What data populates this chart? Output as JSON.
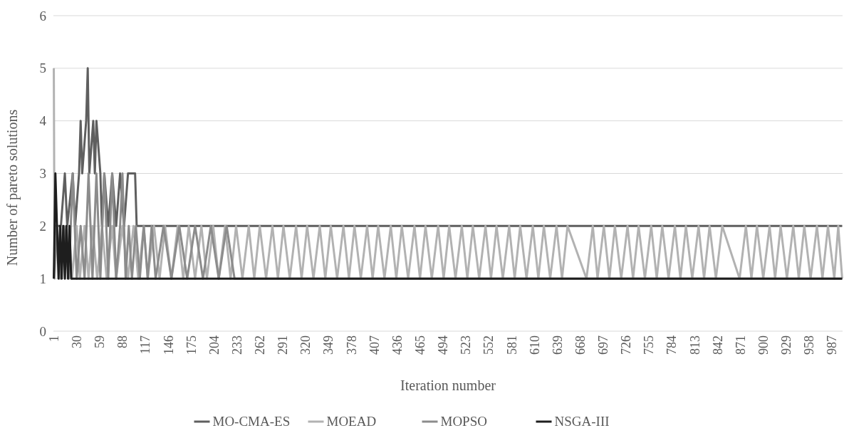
{
  "chart_data": {
    "type": "line",
    "xlabel": "Iteration number",
    "ylabel": "Number of pareto solutions",
    "xlim": [
      0.5,
      1000.5
    ],
    "xticks": [
      1,
      30,
      59,
      88,
      117,
      146,
      175,
      204,
      233,
      262,
      291,
      320,
      349,
      378,
      407,
      436,
      465,
      494,
      523,
      552,
      581,
      610,
      639,
      668,
      697,
      726,
      755,
      784,
      813,
      842,
      871,
      900,
      929,
      958,
      987
    ],
    "ylim": [
      0,
      6
    ],
    "yticks": [
      0,
      1,
      2,
      3,
      4,
      5,
      6
    ],
    "grid": "y",
    "legend": "bottom",
    "line_style": "solid",
    "series": [
      {
        "name": "MO-CMA-ES",
        "color": "#5f5f5f",
        "x": [
          1,
          10,
          15,
          18,
          25,
          28,
          33,
          35,
          37,
          42,
          44,
          46,
          51,
          53,
          55,
          60,
          62,
          65,
          70,
          75,
          80,
          85,
          90,
          95,
          104,
          106,
          1000
        ],
        "values": [
          2,
          2,
          3,
          2,
          3,
          2,
          3,
          4,
          3,
          4,
          5,
          3,
          4,
          3,
          4,
          3,
          2,
          3,
          2,
          3,
          2,
          3,
          2,
          3,
          3,
          2,
          2
        ]
      },
      {
        "name": "MOEAD",
        "color": "#b2b2b2",
        "x": [
          1,
          2,
          5,
          8,
          12,
          15,
          20,
          24,
          30,
          34,
          40,
          45,
          50,
          56,
          62,
          68,
          75,
          80,
          88,
          95,
          102,
          108,
          115,
          120,
          128,
          135,
          142,
          150,
          158,
          165,
          172,
          180,
          188,
          195,
          203,
          210,
          218,
          225,
          232,
          240,
          248,
          255,
          262,
          270,
          278,
          285,
          292,
          300,
          308,
          315,
          322,
          330,
          338,
          345,
          352,
          360,
          368,
          375,
          382,
          390,
          398,
          405,
          412,
          420,
          428,
          435,
          442,
          450,
          458,
          465,
          472,
          480,
          488,
          495,
          502,
          510,
          518,
          525,
          532,
          540,
          548,
          555,
          562,
          570,
          578,
          585,
          592,
          600,
          608,
          615,
          622,
          630,
          638,
          645,
          652,
          676,
          684,
          690,
          698,
          705,
          712,
          720,
          728,
          735,
          742,
          750,
          758,
          765,
          772,
          780,
          788,
          795,
          802,
          810,
          818,
          825,
          832,
          840,
          848,
          870,
          878,
          885,
          892,
          900,
          908,
          915,
          922,
          930,
          938,
          945,
          952,
          960,
          968,
          975,
          982,
          990,
          995,
          1000
        ],
        "values": [
          5,
          1,
          2,
          1,
          2,
          1,
          2,
          1,
          2,
          1,
          2,
          1,
          2,
          1,
          2,
          1,
          2,
          1,
          2,
          1,
          2,
          1,
          2,
          1,
          2,
          1,
          2,
          1,
          2,
          1,
          2,
          1,
          2,
          1,
          2,
          1,
          2,
          1,
          2,
          1,
          2,
          1,
          2,
          1,
          2,
          1,
          2,
          1,
          2,
          1,
          2,
          1,
          2,
          1,
          2,
          1,
          2,
          1,
          2,
          1,
          2,
          1,
          2,
          1,
          2,
          1,
          2,
          1,
          2,
          1,
          2,
          1,
          2,
          1,
          2,
          1,
          2,
          1,
          2,
          1,
          2,
          1,
          2,
          1,
          2,
          1,
          2,
          1,
          2,
          1,
          2,
          1,
          2,
          1,
          2,
          1,
          2,
          1,
          2,
          1,
          2,
          1,
          2,
          1,
          2,
          1,
          2,
          1,
          2,
          1,
          2,
          1,
          2,
          1,
          2,
          1,
          2,
          1,
          2,
          1,
          2,
          1,
          2,
          1,
          2,
          1,
          2,
          1,
          2,
          1,
          2,
          1,
          2,
          1,
          2,
          1,
          2,
          1
        ]
      },
      {
        "name": "MOPSO",
        "color": "#8c8c8c",
        "x": [
          1,
          5,
          10,
          14,
          20,
          25,
          30,
          35,
          40,
          45,
          50,
          55,
          60,
          65,
          70,
          75,
          80,
          85,
          88,
          92,
          96,
          100,
          105,
          110,
          115,
          120,
          125,
          130,
          140,
          150,
          160,
          170,
          180,
          190,
          200,
          210,
          220,
          230,
          240,
          1000
        ],
        "values": [
          1,
          2,
          1,
          2,
          1,
          3,
          1,
          2,
          1,
          3,
          1,
          3,
          1,
          3,
          1,
          3,
          1,
          2,
          3,
          1,
          2,
          1,
          2,
          1,
          2,
          1,
          2,
          1,
          2,
          1,
          2,
          1,
          2,
          1,
          2,
          1,
          2,
          1,
          1,
          1
        ]
      },
      {
        "name": "NSGA-III",
        "color": "#1e1e1e",
        "x": [
          1,
          3,
          5,
          7,
          9,
          11,
          13,
          15,
          17,
          19,
          21,
          23,
          1000
        ],
        "values": [
          1,
          3,
          2,
          1,
          2,
          1,
          2,
          1,
          2,
          1,
          2,
          1,
          1
        ]
      }
    ]
  }
}
